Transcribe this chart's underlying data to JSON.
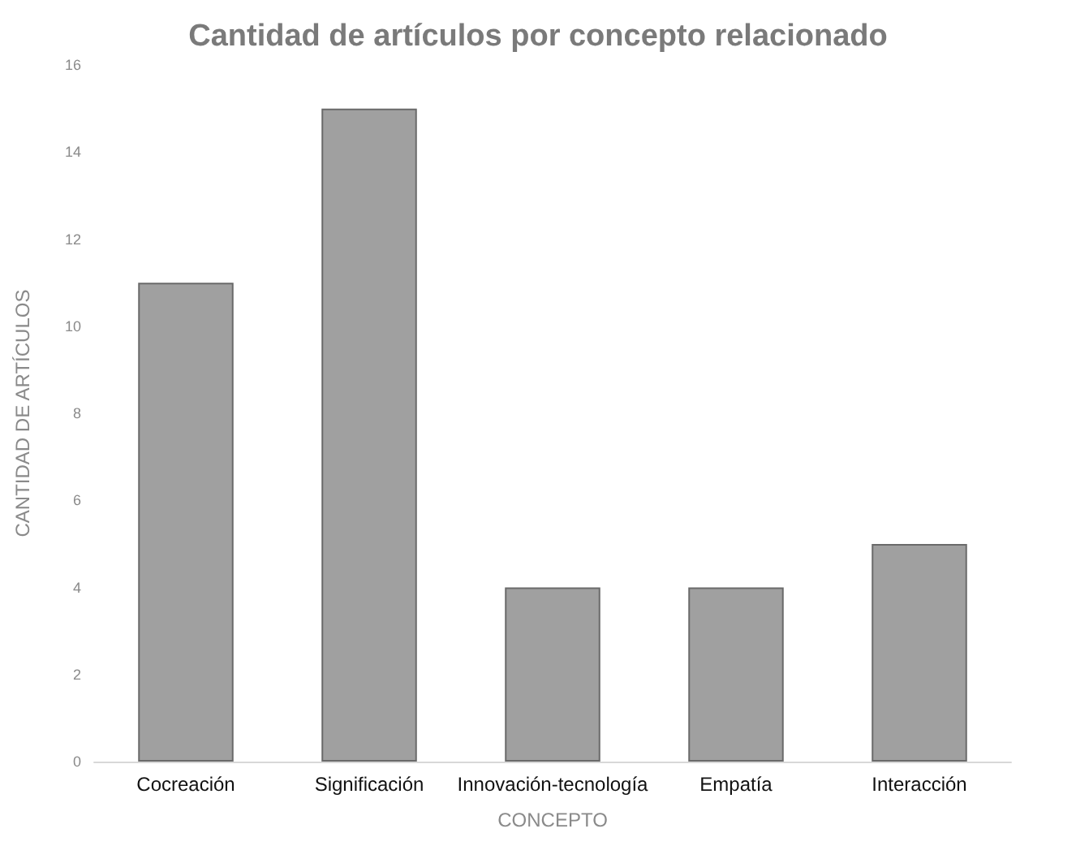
{
  "chart_data": {
    "type": "bar",
    "title": "Cantidad de artículos por concepto relacionado",
    "xlabel": "CONCEPTO",
    "ylabel": "CANTIDAD DE ARTÍCULOS",
    "categories": [
      "Cocreación",
      "Significación",
      "Innovación-tecnología",
      "Empatía",
      "Interacción"
    ],
    "values": [
      11,
      15,
      4,
      4,
      5
    ],
    "color": "#a0a0a0",
    "ylim": [
      0,
      16
    ],
    "yticks": [
      0,
      2,
      4,
      6,
      8,
      10,
      12,
      14,
      16
    ],
    "grid": false
  }
}
